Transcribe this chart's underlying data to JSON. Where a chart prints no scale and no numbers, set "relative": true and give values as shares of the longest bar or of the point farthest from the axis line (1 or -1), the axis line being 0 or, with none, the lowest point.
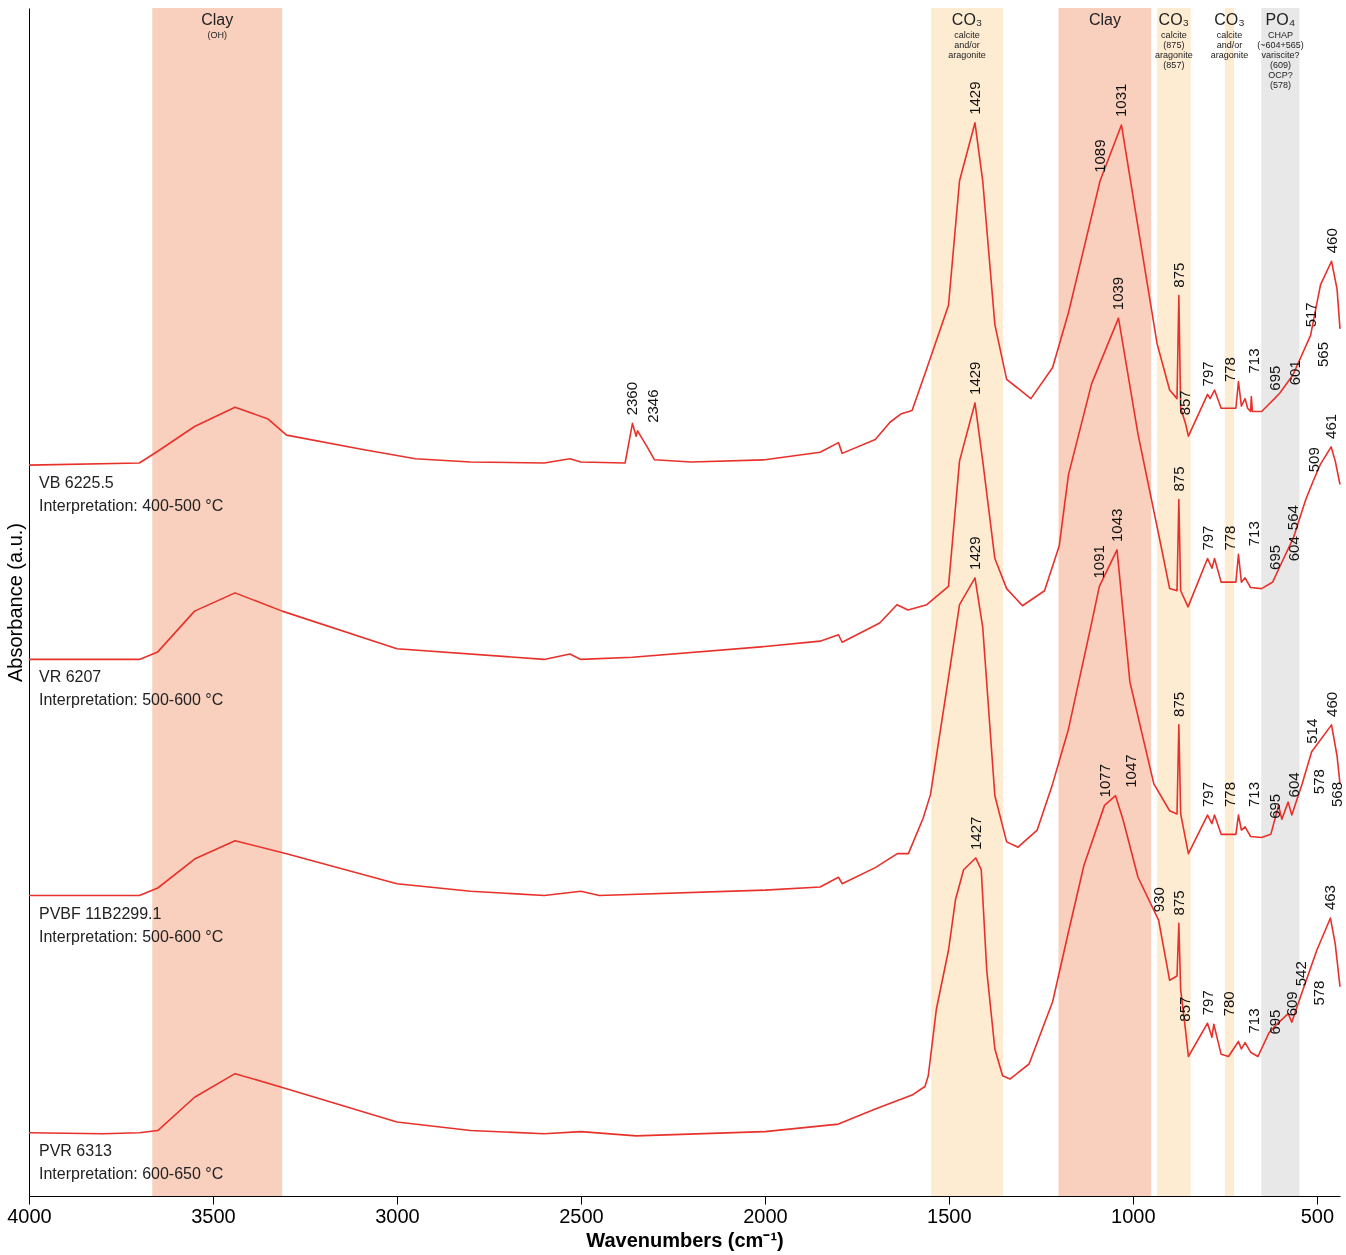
{
  "chart_data": {
    "type": "line",
    "relative": true,
    "xlabel": "Wavenumbers (cm⁻¹)",
    "ylabel": "Absorbance (a.u.)",
    "xlim": [
      4000,
      437
    ],
    "xticks": [
      4000,
      3500,
      3000,
      2500,
      2000,
      1500,
      1000,
      500
    ],
    "series": [
      {
        "name": "VB 6225.5\nInterpretation: 400-500 °C",
        "color": "#e8312a",
        "x": [
          4000,
          3700,
          3650,
          3550,
          3440,
          3350,
          3300,
          3100,
          2950,
          2800,
          2600,
          2530,
          2500,
          2380,
          2360,
          2350,
          2346,
          2320,
          2300,
          2200,
          2000,
          1850,
          1800,
          1790,
          1700,
          1660,
          1629,
          1600,
          1560,
          1501,
          1471,
          1429,
          1408,
          1375,
          1343,
          1277,
          1218,
          1175,
          1089,
          1031,
          986,
          934,
          900,
          880,
          875,
          870,
          857,
          849,
          797,
          790,
          778,
          760,
          720,
          713,
          705,
          695,
          688,
          680,
          678,
          675,
          650,
          615,
          601,
          565,
          517,
          490,
          460,
          445,
          437
        ],
        "values": [
          0.681,
          0.683,
          0.694,
          0.717,
          0.735,
          0.724,
          0.709,
          0.696,
          0.687,
          0.684,
          0.683,
          0.687,
          0.684,
          0.683,
          0.72,
          0.708,
          0.713,
          0.698,
          0.686,
          0.684,
          0.686,
          0.693,
          0.702,
          0.692,
          0.705,
          0.721,
          0.729,
          0.732,
          0.771,
          0.83,
          0.946,
          1.0,
          0.946,
          0.812,
          0.761,
          0.743,
          0.772,
          0.823,
          0.946,
          0.998,
          0.903,
          0.794,
          0.751,
          0.743,
          0.839,
          0.734,
          0.72,
          0.708,
          0.747,
          0.743,
          0.751,
          0.734,
          0.734,
          0.759,
          0.736,
          0.743,
          0.734,
          0.731,
          0.745,
          0.731,
          0.731,
          0.743,
          0.748,
          0.765,
          0.802,
          0.849,
          0.871,
          0.845,
          0.808
        ]
      },
      {
        "name": "VR 6207\nInterpretation: 500-600 °C",
        "color": "#e8312a",
        "x": [
          4000,
          3700,
          3650,
          3550,
          3440,
          3312,
          3000,
          2600,
          2530,
          2500,
          2360,
          2000,
          1850,
          1800,
          1790,
          1688,
          1641,
          1611,
          1560,
          1501,
          1471,
          1429,
          1408,
          1375,
          1343,
          1300,
          1240,
          1200,
          1175,
          1112,
          1039,
          986,
          923,
          900,
          880,
          875,
          870,
          850,
          797,
          785,
          778,
          760,
          720,
          713,
          705,
          695,
          680,
          650,
          620,
          604,
          564,
          530,
          509,
          490,
          461,
          450,
          437
        ],
        "values": [
          0.5,
          0.5,
          0.507,
          0.545,
          0.562,
          0.545,
          0.51,
          0.5,
          0.505,
          0.5,
          0.502,
          0.512,
          0.517,
          0.523,
          0.516,
          0.534,
          0.551,
          0.546,
          0.551,
          0.568,
          0.685,
          0.739,
          0.685,
          0.594,
          0.566,
          0.55,
          0.564,
          0.606,
          0.672,
          0.757,
          0.818,
          0.71,
          0.605,
          0.566,
          0.564,
          0.649,
          0.564,
          0.549,
          0.594,
          0.585,
          0.594,
          0.572,
          0.572,
          0.598,
          0.572,
          0.576,
          0.567,
          0.566,
          0.572,
          0.584,
          0.613,
          0.649,
          0.667,
          0.682,
          0.698,
          0.685,
          0.663
        ]
      },
      {
        "name": "PVBF 11B2299.1\nInterpretation: 500-600 °C",
        "color": "#e8312a",
        "x": [
          4000,
          3700,
          3650,
          3550,
          3440,
          3300,
          3000,
          2800,
          2600,
          2500,
          2450,
          2000,
          1850,
          1800,
          1790,
          1700,
          1640,
          1610,
          1570,
          1550,
          1501,
          1471,
          1429,
          1408,
          1375,
          1343,
          1312,
          1260,
          1218,
          1175,
          1112,
          1091,
          1043,
          1008,
          943,
          900,
          880,
          875,
          870,
          849,
          797,
          785,
          778,
          760,
          720,
          713,
          705,
          695,
          680,
          650,
          625,
          604,
          595,
          578,
          568,
          540,
          514,
          460,
          445,
          437
        ],
        "values": [
          0.28,
          0.28,
          0.287,
          0.314,
          0.331,
          0.319,
          0.291,
          0.284,
          0.28,
          0.284,
          0.28,
          0.285,
          0.288,
          0.297,
          0.291,
          0.306,
          0.319,
          0.319,
          0.352,
          0.374,
          0.483,
          0.551,
          0.576,
          0.53,
          0.373,
          0.33,
          0.325,
          0.341,
          0.384,
          0.435,
          0.534,
          0.568,
          0.602,
          0.479,
          0.384,
          0.359,
          0.356,
          0.439,
          0.356,
          0.319,
          0.355,
          0.347,
          0.355,
          0.337,
          0.337,
          0.355,
          0.341,
          0.344,
          0.335,
          0.334,
          0.337,
          0.364,
          0.351,
          0.367,
          0.355,
          0.384,
          0.414,
          0.439,
          0.41,
          0.384
        ]
      },
      {
        "name": "PVR 6313\nInterpretation: 600-650 °C",
        "color": "#e8312a",
        "x": [
          4000,
          3800,
          3700,
          3650,
          3550,
          3440,
          3300,
          3000,
          2800,
          2600,
          2500,
          2350,
          2000,
          1800,
          1700,
          1600,
          1565,
          1556,
          1534,
          1501,
          1482,
          1460,
          1427,
          1412,
          1397,
          1375,
          1354,
          1334,
          1282,
          1218,
          1175,
          1133,
          1077,
          1047,
          1027,
          986,
          930,
          900,
          880,
          875,
          870,
          857,
          849,
          797,
          785,
          780,
          760,
          740,
          713,
          705,
          695,
          680,
          660,
          630,
          609,
          590,
          578,
          568,
          542,
          500,
          463,
          450,
          437
        ],
        "values": [
          0.059,
          0.058,
          0.059,
          0.061,
          0.092,
          0.114,
          0.1,
          0.069,
          0.061,
          0.058,
          0.06,
          0.056,
          0.06,
          0.067,
          0.081,
          0.094,
          0.102,
          0.112,
          0.174,
          0.229,
          0.276,
          0.304,
          0.315,
          0.304,
          0.21,
          0.137,
          0.112,
          0.109,
          0.123,
          0.181,
          0.246,
          0.308,
          0.364,
          0.373,
          0.351,
          0.297,
          0.257,
          0.201,
          0.205,
          0.254,
          0.192,
          0.155,
          0.13,
          0.161,
          0.148,
          0.16,
          0.132,
          0.13,
          0.144,
          0.137,
          0.143,
          0.134,
          0.13,
          0.152,
          0.16,
          0.166,
          0.17,
          0.162,
          0.188,
          0.229,
          0.259,
          0.235,
          0.195
        ]
      }
    ],
    "bands": [
      {
        "axis": "x",
        "from": 3665,
        "to": 3312,
        "label": "Clay\n(OH)",
        "color": "#f9cfbd"
      },
      {
        "axis": "x",
        "from": 1548,
        "to": 1353,
        "label": "CO₃\ncalcite\nand/or\naragonite",
        "color": "#fdebd2"
      },
      {
        "axis": "x",
        "from": 1202,
        "to": 950,
        "label": "Clay",
        "color": "#f9cfbd"
      },
      {
        "axis": "x",
        "from": 934,
        "to": 843,
        "label": "CO₃\ncalcite\n(875)\naragonite\n(857)",
        "color": "#fdebd2"
      },
      {
        "axis": "x",
        "from": 750,
        "to": 725,
        "label": "CO₃\ncalcite\nand/or\naragonite",
        "color": "#fdebd2"
      },
      {
        "axis": "x",
        "from": 651,
        "to": 547,
        "label": "PO₄\nCHAP\n(~604+565)\n\nvariscite?\n(609)\n\nOCP?\n(578)",
        "color": "#e8e8e8"
      }
    ],
    "annotations": [
      {
        "text": "1429",
        "x": 1429,
        "y": 1.0
      },
      {
        "text": "2360",
        "x": 2360,
        "y": 0.72
      },
      {
        "text": "2346",
        "x": 2346,
        "y": 0.713
      },
      {
        "text": "1089",
        "x": 1089,
        "y": 0.946
      },
      {
        "text": "1031",
        "x": 1031,
        "y": 0.998
      },
      {
        "text": "875",
        "x": 875,
        "y": 0.839
      },
      {
        "text": "857",
        "x": 857,
        "y": 0.72
      },
      {
        "text": "797",
        "x": 797,
        "y": 0.747
      },
      {
        "text": "778",
        "x": 778,
        "y": 0.751
      },
      {
        "text": "713",
        "x": 713,
        "y": 0.759
      },
      {
        "text": "695",
        "x": 695,
        "y": 0.743
      },
      {
        "text": "601",
        "x": 601,
        "y": 0.748
      },
      {
        "text": "565",
        "x": 565,
        "y": 0.765
      },
      {
        "text": "517",
        "x": 517,
        "y": 0.802
      },
      {
        "text": "460",
        "x": 460,
        "y": 0.871
      },
      {
        "text": "1429",
        "x": 1429,
        "y": 0.739
      },
      {
        "text": "1039",
        "x": 1039,
        "y": 0.818
      },
      {
        "text": "875",
        "x": 875,
        "y": 0.649
      },
      {
        "text": "797",
        "x": 797,
        "y": 0.594
      },
      {
        "text": "778",
        "x": 778,
        "y": 0.594
      },
      {
        "text": "713",
        "x": 713,
        "y": 0.598
      },
      {
        "text": "695",
        "x": 695,
        "y": 0.576
      },
      {
        "text": "604",
        "x": 604,
        "y": 0.584
      },
      {
        "text": "564",
        "x": 564,
        "y": 0.613
      },
      {
        "text": "509",
        "x": 509,
        "y": 0.667
      },
      {
        "text": "461",
        "x": 461,
        "y": 0.698
      },
      {
        "text": "1429",
        "x": 1429,
        "y": 0.576
      },
      {
        "text": "1091",
        "x": 1091,
        "y": 0.568
      },
      {
        "text": "1043",
        "x": 1043,
        "y": 0.602
      },
      {
        "text": "875",
        "x": 875,
        "y": 0.439
      },
      {
        "text": "797",
        "x": 797,
        "y": 0.355
      },
      {
        "text": "778",
        "x": 778,
        "y": 0.355
      },
      {
        "text": "713",
        "x": 713,
        "y": 0.355
      },
      {
        "text": "695",
        "x": 695,
        "y": 0.344
      },
      {
        "text": "604",
        "x": 604,
        "y": 0.364
      },
      {
        "text": "578",
        "x": 578,
        "y": 0.367
      },
      {
        "text": "568",
        "x": 568,
        "y": 0.355
      },
      {
        "text": "514",
        "x": 514,
        "y": 0.414
      },
      {
        "text": "460",
        "x": 460,
        "y": 0.439
      },
      {
        "text": "1427",
        "x": 1427,
        "y": 0.315
      },
      {
        "text": "1077",
        "x": 1077,
        "y": 0.364
      },
      {
        "text": "1047",
        "x": 1047,
        "y": 0.373
      },
      {
        "text": "930",
        "x": 930,
        "y": 0.257
      },
      {
        "text": "875",
        "x": 875,
        "y": 0.254
      },
      {
        "text": "857",
        "x": 857,
        "y": 0.155
      },
      {
        "text": "797",
        "x": 797,
        "y": 0.161
      },
      {
        "text": "780",
        "x": 780,
        "y": 0.16
      },
      {
        "text": "713",
        "x": 713,
        "y": 0.144
      },
      {
        "text": "695",
        "x": 695,
        "y": 0.143
      },
      {
        "text": "609",
        "x": 609,
        "y": 0.16
      },
      {
        "text": "578",
        "x": 578,
        "y": 0.17
      },
      {
        "text": "542",
        "x": 542,
        "y": 0.188
      },
      {
        "text": "463",
        "x": 463,
        "y": 0.259
      }
    ]
  }
}
